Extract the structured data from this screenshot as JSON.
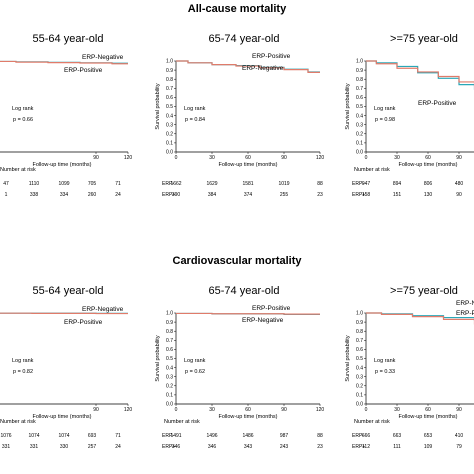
{
  "sections": [
    {
      "title": "All-cause mortality"
    },
    {
      "title": "Cardiovascular mortality"
    }
  ],
  "colors": {
    "erp_negative": "#2aa8b8",
    "erp_positive": "#e07b6a",
    "axis": "#000000"
  },
  "chart_data": [
    {
      "type": "line",
      "section": "All-cause mortality",
      "title": "55-64 year-old",
      "xlabel": "Follow-up time (months)",
      "ylabel": "",
      "xticks": [
        "90",
        "120"
      ],
      "yticks": [],
      "xlim": [
        0,
        120
      ],
      "ylim": [
        0,
        1.0
      ],
      "log_rank": "Log rank",
      "p_value": "p = 0.66",
      "risk_title": "Number at risk",
      "risk_table": [
        {
          "label": "",
          "values": [
            "47",
            "1110",
            "1099",
            "705",
            "71"
          ]
        },
        {
          "label": "",
          "values": [
            "1",
            "338",
            "334",
            "260",
            "24"
          ]
        }
      ],
      "series": [
        {
          "name": "ERP-Negative",
          "x": [
            0,
            30,
            60,
            90,
            120
          ],
          "y": [
            0.995,
            0.99,
            0.985,
            0.98,
            0.975
          ]
        },
        {
          "name": "ERP-Positive",
          "x": [
            0,
            30,
            60,
            90,
            120
          ],
          "y": [
            0.995,
            0.988,
            0.982,
            0.978,
            0.97
          ]
        }
      ],
      "legend_order": [
        "ERP-Negative",
        "ERP-Positive"
      ]
    },
    {
      "type": "line",
      "section": "All-cause mortality",
      "title": "65-74 year-old",
      "xlabel": "Follow-up time (months)",
      "ylabel": "Survival probability",
      "xticks": [
        "0",
        "30",
        "60",
        "90",
        "120"
      ],
      "yticks": [
        "0.0",
        "0.1",
        "0.2",
        "0.3",
        "0.4",
        "0.5",
        "0.6",
        "0.7",
        "0.8",
        "0.9",
        "1.0"
      ],
      "xlim": [
        0,
        120
      ],
      "ylim": [
        0,
        1.0
      ],
      "log_rank": "Log rank",
      "p_value": "p = 0.84",
      "risk_title": "",
      "risk_table": [
        {
          "label": "ERP-",
          "values": [
            "1662",
            "1629",
            "1581",
            "1019",
            "88"
          ]
        },
        {
          "label": "ERP+",
          "values": [
            "390",
            "384",
            "374",
            "255",
            "23"
          ]
        }
      ],
      "series": [
        {
          "name": "ERP-Negative",
          "x": [
            0,
            20,
            40,
            60,
            80,
            100,
            120
          ],
          "y": [
            1.0,
            0.98,
            0.96,
            0.95,
            0.93,
            0.91,
            0.88
          ]
        },
        {
          "name": "ERP-Positive",
          "x": [
            0,
            20,
            40,
            60,
            80,
            100,
            120
          ],
          "y": [
            1.0,
            0.98,
            0.96,
            0.945,
            0.925,
            0.905,
            0.875
          ]
        }
      ],
      "legend_order": [
        "ERP-Positive",
        "ERP-Negative"
      ]
    },
    {
      "type": "line",
      "section": "All-cause mortality",
      "title": ">=75 year-old",
      "xlabel": "Follow-up time (months)",
      "ylabel": "Survival probability",
      "xticks": [
        "0",
        "30",
        "60",
        "90"
      ],
      "yticks": [
        "0.0",
        "0.1",
        "0.2",
        "0.3",
        "0.4",
        "0.5",
        "0.6",
        "0.7",
        "0.8",
        "0.9",
        "1.0"
      ],
      "xlim": [
        0,
        120
      ],
      "ylim": [
        0,
        1.0
      ],
      "log_rank": "Log rank",
      "p_value": "p = 0.98",
      "risk_title": "Number at risk",
      "risk_table": [
        {
          "label": "ERP-",
          "values": [
            "947",
            "894",
            "806",
            "480"
          ]
        },
        {
          "label": "ERP+",
          "values": [
            "158",
            "151",
            "130",
            "90"
          ]
        }
      ],
      "series": [
        {
          "name": "ERP-Negative",
          "x": [
            0,
            20,
            40,
            60,
            80,
            100,
            110,
            120
          ],
          "y": [
            1.0,
            0.98,
            0.94,
            0.87,
            0.81,
            0.74,
            0.69,
            0.64
          ]
        },
        {
          "name": "ERP-Positive",
          "x": [
            0,
            20,
            40,
            60,
            80,
            100,
            110,
            120
          ],
          "y": [
            1.0,
            0.97,
            0.92,
            0.88,
            0.83,
            0.77,
            0.73,
            0.68
          ]
        }
      ],
      "legend_order": [
        "ERP-Positive"
      ]
    },
    {
      "type": "line",
      "section": "Cardiovascular mortality",
      "title": "55-64 year-old",
      "xlabel": "Follow-up time (months)",
      "ylabel": "",
      "xticks": [
        "90",
        "120"
      ],
      "yticks": [],
      "xlim": [
        0,
        120
      ],
      "ylim": [
        0,
        1.0
      ],
      "log_rank": "Log rank",
      "p_value": "p = 0.82",
      "risk_title": "Number at risk",
      "risk_table": [
        {
          "label": "",
          "values": [
            "1076",
            "1074",
            "1074",
            "693",
            "71"
          ]
        },
        {
          "label": "",
          "values": [
            "331",
            "331",
            "330",
            "257",
            "24"
          ]
        }
      ],
      "series": [
        {
          "name": "ERP-Negative",
          "x": [
            0,
            60,
            120
          ],
          "y": [
            0.998,
            0.997,
            0.996
          ]
        },
        {
          "name": "ERP-Positive",
          "x": [
            0,
            60,
            120
          ],
          "y": [
            0.998,
            0.996,
            0.994
          ]
        }
      ],
      "legend_order": [
        "ERP-Negative",
        "ERP-Positive"
      ]
    },
    {
      "type": "line",
      "section": "Cardiovascular mortality",
      "title": "65-74 year-old",
      "xlabel": "Follow-up time (months)",
      "ylabel": "Survival probability",
      "xticks": [
        "0",
        "30",
        "60",
        "90",
        "120"
      ],
      "yticks": [
        "0.0",
        "0.1",
        "0.2",
        "0.3",
        "0.4",
        "0.5",
        "0.6",
        "0.7",
        "0.8",
        "0.9",
        "1.0"
      ],
      "xlim": [
        0,
        120
      ],
      "ylim": [
        0,
        1.0
      ],
      "log_rank": "Log rank",
      "p_value": "p = 0.62",
      "risk_title": "Number at risk",
      "risk_table": [
        {
          "label": "ERP-",
          "values": [
            "1491",
            "1496",
            "1486",
            "987",
            "88"
          ]
        },
        {
          "label": "ERP+",
          "values": [
            "346",
            "346",
            "343",
            "243",
            "23"
          ]
        }
      ],
      "series": [
        {
          "name": "ERP-Negative",
          "x": [
            0,
            60,
            120
          ],
          "y": [
            0.995,
            0.99,
            0.985
          ]
        },
        {
          "name": "ERP-Positive",
          "x": [
            0,
            60,
            120
          ],
          "y": [
            0.995,
            0.992,
            0.988
          ]
        }
      ],
      "legend_order": [
        "ERP-Positive",
        "ERP-Negative"
      ]
    },
    {
      "type": "line",
      "section": "Cardiovascular mortality",
      "title": ">=75 year-old",
      "xlabel": "Follow-up time (months)",
      "ylabel": "Survival probability",
      "xticks": [
        "0",
        "30",
        "60",
        "90"
      ],
      "yticks": [
        "0.0",
        "0.1",
        "0.2",
        "0.3",
        "0.4",
        "0.5",
        "0.6",
        "0.7",
        "0.8",
        "0.9",
        "1.0"
      ],
      "xlim": [
        0,
        120
      ],
      "ylim": [
        0,
        1.0
      ],
      "log_rank": "Log rank",
      "p_value": "p = 0.33",
      "risk_title": "Number at risk",
      "risk_table": [
        {
          "label": "ERP-",
          "values": [
            "666",
            "663",
            "653",
            "410"
          ]
        },
        {
          "label": "ERP+",
          "values": [
            "112",
            "111",
            "109",
            "79"
          ]
        }
      ],
      "series": [
        {
          "name": "ERP-Negative",
          "x": [
            0,
            30,
            60,
            90,
            120
          ],
          "y": [
            1.0,
            0.99,
            0.97,
            0.95,
            0.92
          ]
        },
        {
          "name": "ERP-Positive",
          "x": [
            0,
            30,
            60,
            90,
            120
          ],
          "y": [
            1.0,
            0.985,
            0.96,
            0.93,
            0.88
          ]
        }
      ],
      "legend_order": [
        "ERP-N",
        "ERP-P"
      ]
    }
  ]
}
